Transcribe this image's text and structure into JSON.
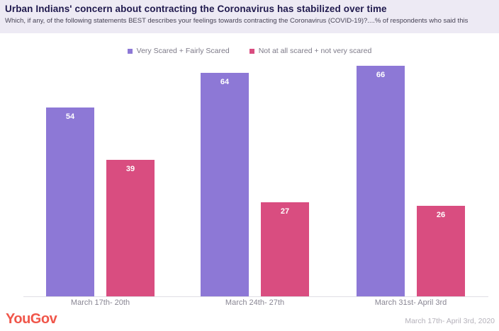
{
  "header": {
    "title": "Urban Indians' concern about contracting the Coronavirus has stabilized over time",
    "subtitle": "Which, if any, of the following statements BEST describes your feelings towards contracting the Coronavirus (COVID-19)?....% of respondents who said this"
  },
  "legend": [
    {
      "label": "Very Scared + Fairly Scared",
      "color": "#8d78d6"
    },
    {
      "label": "Not at all scared + not very scared",
      "color": "#d94d80"
    }
  ],
  "chart_data": {
    "type": "bar",
    "categories": [
      "March 17th- 20th",
      "March 24th- 27th",
      "March 31st- April 3rd"
    ],
    "series": [
      {
        "name": "Very Scared + Fairly Scared",
        "color": "#8d78d6",
        "values": [
          54,
          64,
          66
        ]
      },
      {
        "name": "Not at all scared + not very scared",
        "color": "#d94d80",
        "values": [
          39,
          27,
          26
        ]
      }
    ],
    "ylim": [
      0,
      70
    ],
    "grid": false,
    "legend_position": "top",
    "value_labels": "inside-top",
    "colors": {
      "bar_purple": "#8d78d6",
      "bar_pink": "#d94d80",
      "axis_line": "#e0dee4",
      "header_background": "#edeaf4",
      "title_text": "#201a4e",
      "brand_red": "#f0564a"
    }
  },
  "footer": {
    "logo": "YouGov",
    "date_range": "March 17th- April 3rd, 2020"
  }
}
